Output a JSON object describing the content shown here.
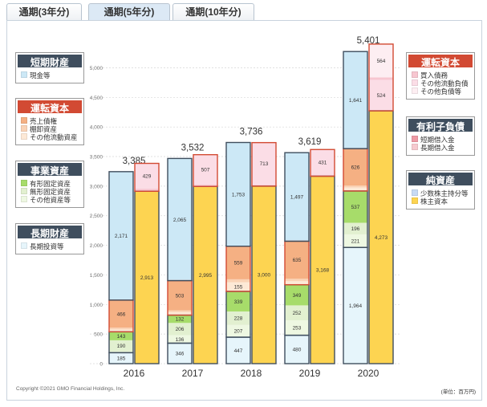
{
  "tabs": [
    {
      "label": "通期(3年分)",
      "active": false
    },
    {
      "label": "通期(5年分)",
      "active": true
    },
    {
      "label": "通期(10年分)",
      "active": false
    }
  ],
  "legend_left": [
    {
      "title": "短期財産",
      "color": "#3f4e5e",
      "items": [
        {
          "label": "現金等",
          "color": "#cce8f6"
        }
      ]
    },
    {
      "title": "運転資本",
      "color": "#d24a33",
      "items": [
        {
          "label": "売上債権",
          "color": "#f5b083"
        },
        {
          "label": "棚卸資産",
          "color": "#fad3b6"
        },
        {
          "label": "その他流動資産",
          "color": "#fde9d6"
        }
      ]
    },
    {
      "title": "事業資産",
      "color": "#3f4e5e",
      "items": [
        {
          "label": "有形固定資産",
          "color": "#a7dc6a"
        },
        {
          "label": "無形固定資産",
          "color": "#e2f0d0"
        },
        {
          "label": "その他資産等",
          "color": "#eef8e2"
        }
      ]
    },
    {
      "title": "長期財産",
      "color": "#3f4e5e",
      "items": [
        {
          "label": "長期投資等",
          "color": "#e6f5fb"
        }
      ]
    }
  ],
  "legend_right": [
    {
      "title": "運転資本",
      "color": "#d24a33",
      "items": [
        {
          "label": "買入債務",
          "color": "#f7c6d0"
        },
        {
          "label": "その他流動負債",
          "color": "#fbdde6"
        },
        {
          "label": "その他負債等",
          "color": "#fdeef2"
        }
      ]
    },
    {
      "title": "有利子負債",
      "color": "#3f4e5e",
      "items": [
        {
          "label": "短期借入金",
          "color": "#ee9aa5"
        },
        {
          "label": "長期借入金",
          "color": "#f6c9cf"
        }
      ]
    },
    {
      "title": "純資産",
      "color": "#3f4e5e",
      "items": [
        {
          "label": "少数株主持分等",
          "color": "#c7daf5"
        },
        {
          "label": "株主資本",
          "color": "#fdd451"
        }
      ]
    }
  ],
  "footer": {
    "copyright": "Copyright ©2021 GMO Financial Holdings, Inc.",
    "unit": "(単位：百万円)"
  },
  "chart_data": {
    "type": "bar",
    "subtype": "stacked-balance-sheet",
    "categories": [
      "2016",
      "2017",
      "2018",
      "2019",
      "2020"
    ],
    "totals": [
      3385,
      3532,
      3736,
      3619,
      5401
    ],
    "ylim": [
      0,
      5400
    ],
    "yticks": [
      0,
      500,
      1000,
      1500,
      2000,
      2500,
      3000,
      3500,
      4000,
      4500,
      5000
    ],
    "ytick_labels": [
      "0",
      "500",
      "1,000",
      "1,500",
      "2,000",
      "2,500",
      "3,000",
      "3,500",
      "4,000",
      "4,500",
      "5,000"
    ],
    "assets": [
      {
        "year": "2016",
        "segments": [
          {
            "name": "長期投資等",
            "value": 185,
            "label": "185",
            "color": "#e6f5fb"
          },
          {
            "name": "その他資産等",
            "value": 20,
            "label": "",
            "color": "#eef8e2"
          },
          {
            "name": "無形固定資産",
            "value": 190,
            "label": "190",
            "color": "#e2f0d0"
          },
          {
            "name": "有形固定資産",
            "value": 143,
            "label": "143",
            "color": "#a7dc6a"
          },
          {
            "name": "その他流動資産",
            "value": 40,
            "label": "",
            "color": "#fde9d6"
          },
          {
            "name": "棚卸資産",
            "value": 30,
            "label": "",
            "color": "#fad3b6"
          },
          {
            "name": "売上債権",
            "value": 466,
            "label": "466",
            "color": "#f5b083"
          },
          {
            "name": "現金等",
            "value": 2171,
            "label": "2,171",
            "color": "#cce8f6"
          }
        ]
      },
      {
        "year": "2017",
        "segments": [
          {
            "name": "長期投資等",
            "value": 346,
            "label": "346",
            "color": "#e6f5fb"
          },
          {
            "name": "その他資産等",
            "value": 136,
            "label": "136",
            "color": "#eef8e2"
          },
          {
            "name": "無形固定資産",
            "value": 206,
            "label": "206",
            "color": "#e2f0d0"
          },
          {
            "name": "有形固定資産",
            "value": 132,
            "label": "132",
            "color": "#a7dc6a"
          },
          {
            "name": "その他流動資産",
            "value": 50,
            "label": "",
            "color": "#fde9d6"
          },
          {
            "name": "棚卸資産",
            "value": 30,
            "label": "",
            "color": "#fad3b6"
          },
          {
            "name": "売上債権",
            "value": 503,
            "label": "503",
            "color": "#f5b083"
          },
          {
            "name": "現金等",
            "value": 2065,
            "label": "2,065",
            "color": "#cce8f6"
          }
        ]
      },
      {
        "year": "2018",
        "segments": [
          {
            "name": "長期投資等",
            "value": 447,
            "label": "447",
            "color": "#e6f5fb"
          },
          {
            "name": "その他資産等",
            "value": 207,
            "label": "207",
            "color": "#eef8e2"
          },
          {
            "name": "無形固定資産",
            "value": 228,
            "label": "228",
            "color": "#e2f0d0"
          },
          {
            "name": "有形固定資産",
            "value": 339,
            "label": "339",
            "color": "#a7dc6a"
          },
          {
            "name": "その他流動資産",
            "value": 155,
            "label": "155",
            "color": "#fde9d6"
          },
          {
            "name": "棚卸資産",
            "value": 50,
            "label": "",
            "color": "#fad3b6"
          },
          {
            "name": "売上債権",
            "value": 559,
            "label": "559",
            "color": "#f5b083"
          },
          {
            "name": "現金等",
            "value": 1753,
            "label": "1,753",
            "color": "#cce8f6"
          }
        ]
      },
      {
        "year": "2019",
        "segments": [
          {
            "name": "長期投資等",
            "value": 480,
            "label": "480",
            "color": "#e6f5fb"
          },
          {
            "name": "その他資産等",
            "value": 253,
            "label": "253",
            "color": "#eef8e2"
          },
          {
            "name": "無形固定資産",
            "value": 252,
            "label": "252",
            "color": "#e2f0d0"
          },
          {
            "name": "有形固定資産",
            "value": 349,
            "label": "349",
            "color": "#a7dc6a"
          },
          {
            "name": "その他流動資産",
            "value": 60,
            "label": "",
            "color": "#fde9d6"
          },
          {
            "name": "棚卸資産",
            "value": 40,
            "label": "",
            "color": "#fad3b6"
          },
          {
            "name": "売上債権",
            "value": 635,
            "label": "635",
            "color": "#f5b083"
          },
          {
            "name": "現金等",
            "value": 1497,
            "label": "1,497",
            "color": "#cce8f6"
          }
        ]
      },
      {
        "year": "2020",
        "segments": [
          {
            "name": "長期投資等",
            "value": 1964,
            "label": "1,964",
            "color": "#e6f5fb"
          },
          {
            "name": "その他資産等",
            "value": 221,
            "label": "221",
            "color": "#eef8e2"
          },
          {
            "name": "無形固定資産",
            "value": 196,
            "label": "196",
            "color": "#e2f0d0"
          },
          {
            "name": "有形固定資産",
            "value": 537,
            "label": "537",
            "color": "#a7dc6a"
          },
          {
            "name": "その他流動資産",
            "value": 60,
            "label": "",
            "color": "#fde9d6"
          },
          {
            "name": "棚卸資産",
            "value": 30,
            "label": "",
            "color": "#fad3b6"
          },
          {
            "name": "売上債権",
            "value": 626,
            "label": "626",
            "color": "#f5b083"
          },
          {
            "name": "現金等",
            "value": 1641,
            "label": "1,641",
            "color": "#cce8f6"
          }
        ]
      }
    ],
    "liabilities": [
      {
        "year": "2016",
        "segments": [
          {
            "name": "株主資本",
            "value": 2913,
            "label": "2,913",
            "color": "#fdd451"
          },
          {
            "name": "買入債務",
            "value": 43,
            "label": "",
            "color": "#f7c6d0"
          },
          {
            "name": "その他流動負債",
            "value": 429,
            "label": "429",
            "color": "#fbdde6"
          }
        ]
      },
      {
        "year": "2017",
        "segments": [
          {
            "name": "株主資本",
            "value": 2995,
            "label": "2,995",
            "color": "#fdd451"
          },
          {
            "name": "買入債務",
            "value": 30,
            "label": "",
            "color": "#f7c6d0"
          },
          {
            "name": "その他流動負債",
            "value": 507,
            "label": "507",
            "color": "#fbdde6"
          }
        ]
      },
      {
        "year": "2018",
        "segments": [
          {
            "name": "株主資本",
            "value": 3000,
            "label": "3,000",
            "color": "#fdd451"
          },
          {
            "name": "買入債務",
            "value": 23,
            "label": "",
            "color": "#f7c6d0"
          },
          {
            "name": "その他流動負債",
            "value": 713,
            "label": "713",
            "color": "#fbdde6"
          }
        ]
      },
      {
        "year": "2019",
        "segments": [
          {
            "name": "株主資本",
            "value": 3168,
            "label": "3,168",
            "color": "#fdd451"
          },
          {
            "name": "買入債務",
            "value": 20,
            "label": "",
            "color": "#f7c6d0"
          },
          {
            "name": "その他流動負債",
            "value": 431,
            "label": "431",
            "color": "#fbdde6"
          }
        ]
      },
      {
        "year": "2020",
        "segments": [
          {
            "name": "株主資本",
            "value": 4273,
            "label": "4,273",
            "color": "#fdd451"
          },
          {
            "name": "その他流動負債",
            "value": 524,
            "label": "524",
            "color": "#fbdde6"
          },
          {
            "name": "買入債務",
            "value": 40,
            "label": "",
            "color": "#f7c6d0"
          },
          {
            "name": "その他負債等",
            "value": 564,
            "label": "564",
            "color": "#fdeef2"
          }
        ]
      }
    ]
  }
}
